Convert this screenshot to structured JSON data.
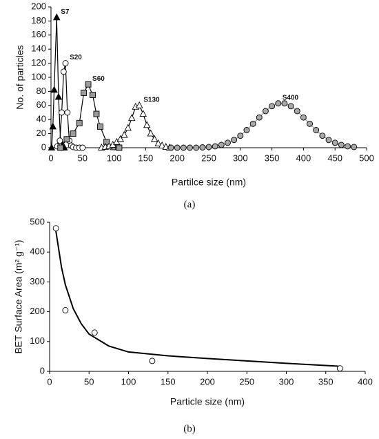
{
  "chart_data": [
    {
      "type": "line",
      "caption": "(a)",
      "y_label": "No. of particles",
      "x_label": "Partilce size (nm)",
      "xlim": [
        0,
        500
      ],
      "xticks": [
        0,
        50,
        100,
        150,
        200,
        250,
        300,
        350,
        400,
        450,
        500
      ],
      "ylim": [
        0,
        200
      ],
      "yticks": [
        0,
        20,
        40,
        60,
        80,
        100,
        120,
        140,
        160,
        180,
        200
      ],
      "series": [
        {
          "name": "S7",
          "color": "#000000",
          "line_color": "#000000",
          "marker": "triangle",
          "x": [
            1,
            3,
            5,
            9,
            12,
            15,
            18,
            21
          ],
          "values": [
            0,
            30,
            82,
            185,
            72,
            10,
            2,
            0
          ]
        },
        {
          "name": "S20",
          "color": "#ffffff",
          "line_color": "#000000",
          "marker": "circle",
          "x": [
            10,
            14,
            17,
            20,
            23,
            26,
            29,
            32,
            35,
            40,
            45,
            50
          ],
          "values": [
            2,
            10,
            50,
            108,
            120,
            50,
            10,
            3,
            1,
            0,
            0,
            0
          ]
        },
        {
          "name": "S60",
          "color": "#9a9a9a",
          "line_color": "#000000",
          "marker": "square",
          "x": [
            15,
            25,
            35,
            45,
            52,
            59,
            66,
            72,
            78,
            88,
            98,
            108
          ],
          "values": [
            0,
            12,
            20,
            35,
            78,
            90,
            75,
            48,
            30,
            8,
            1,
            0
          ]
        },
        {
          "name": "S130",
          "color": "#ffffff",
          "line_color": "#000000",
          "marker": "triangle",
          "x": [
            80,
            86,
            92,
            98,
            104,
            110,
            116,
            122,
            128,
            134,
            140,
            146,
            152,
            158,
            164,
            170,
            176,
            182,
            188
          ],
          "values": [
            0,
            1,
            2,
            4,
            8,
            12,
            18,
            28,
            42,
            58,
            60,
            48,
            32,
            20,
            12,
            6,
            3,
            1,
            0
          ]
        },
        {
          "name": "S400",
          "color": "#a8a8a8",
          "line_color": "#999999",
          "marker": "circle",
          "x": [
            190,
            200,
            210,
            220,
            230,
            240,
            250,
            260,
            270,
            280,
            290,
            300,
            310,
            320,
            330,
            340,
            350,
            360,
            370,
            380,
            390,
            400,
            410,
            420,
            430,
            440,
            450,
            460,
            470,
            480
          ],
          "values": [
            0,
            0,
            0,
            0,
            0,
            0.5,
            1,
            2,
            4,
            7,
            11,
            17,
            25,
            34,
            43,
            52,
            59,
            63,
            63,
            59,
            52,
            43,
            34,
            25,
            17,
            11,
            7,
            4,
            2,
            1
          ]
        }
      ]
    },
    {
      "type": "scatter",
      "caption": "(b)",
      "y_label": "BET Surface Area (m² g⁻¹)",
      "x_label": "Particle size (nm)",
      "xlim": [
        0,
        400
      ],
      "xticks": [
        0,
        50,
        100,
        150,
        200,
        250,
        300,
        350,
        400
      ],
      "ylim": [
        0,
        500
      ],
      "yticks": [
        0,
        100,
        200,
        300,
        400,
        500
      ],
      "series": [
        {
          "mode": "line",
          "line_color": "#000000",
          "x": [
            8,
            15,
            20,
            30,
            40,
            50,
            75,
            100,
            150,
            200,
            250,
            300,
            368
          ],
          "values": [
            470,
            350,
            290,
            210,
            160,
            125,
            85,
            65,
            52,
            43,
            35,
            27,
            17
          ]
        },
        {
          "mode": "markers",
          "color": "#ffffff",
          "line_color": "#000000",
          "marker": "circle",
          "x": [
            8,
            20,
            57,
            130,
            368
          ],
          "values": [
            480,
            205,
            130,
            35,
            10
          ]
        }
      ]
    }
  ]
}
